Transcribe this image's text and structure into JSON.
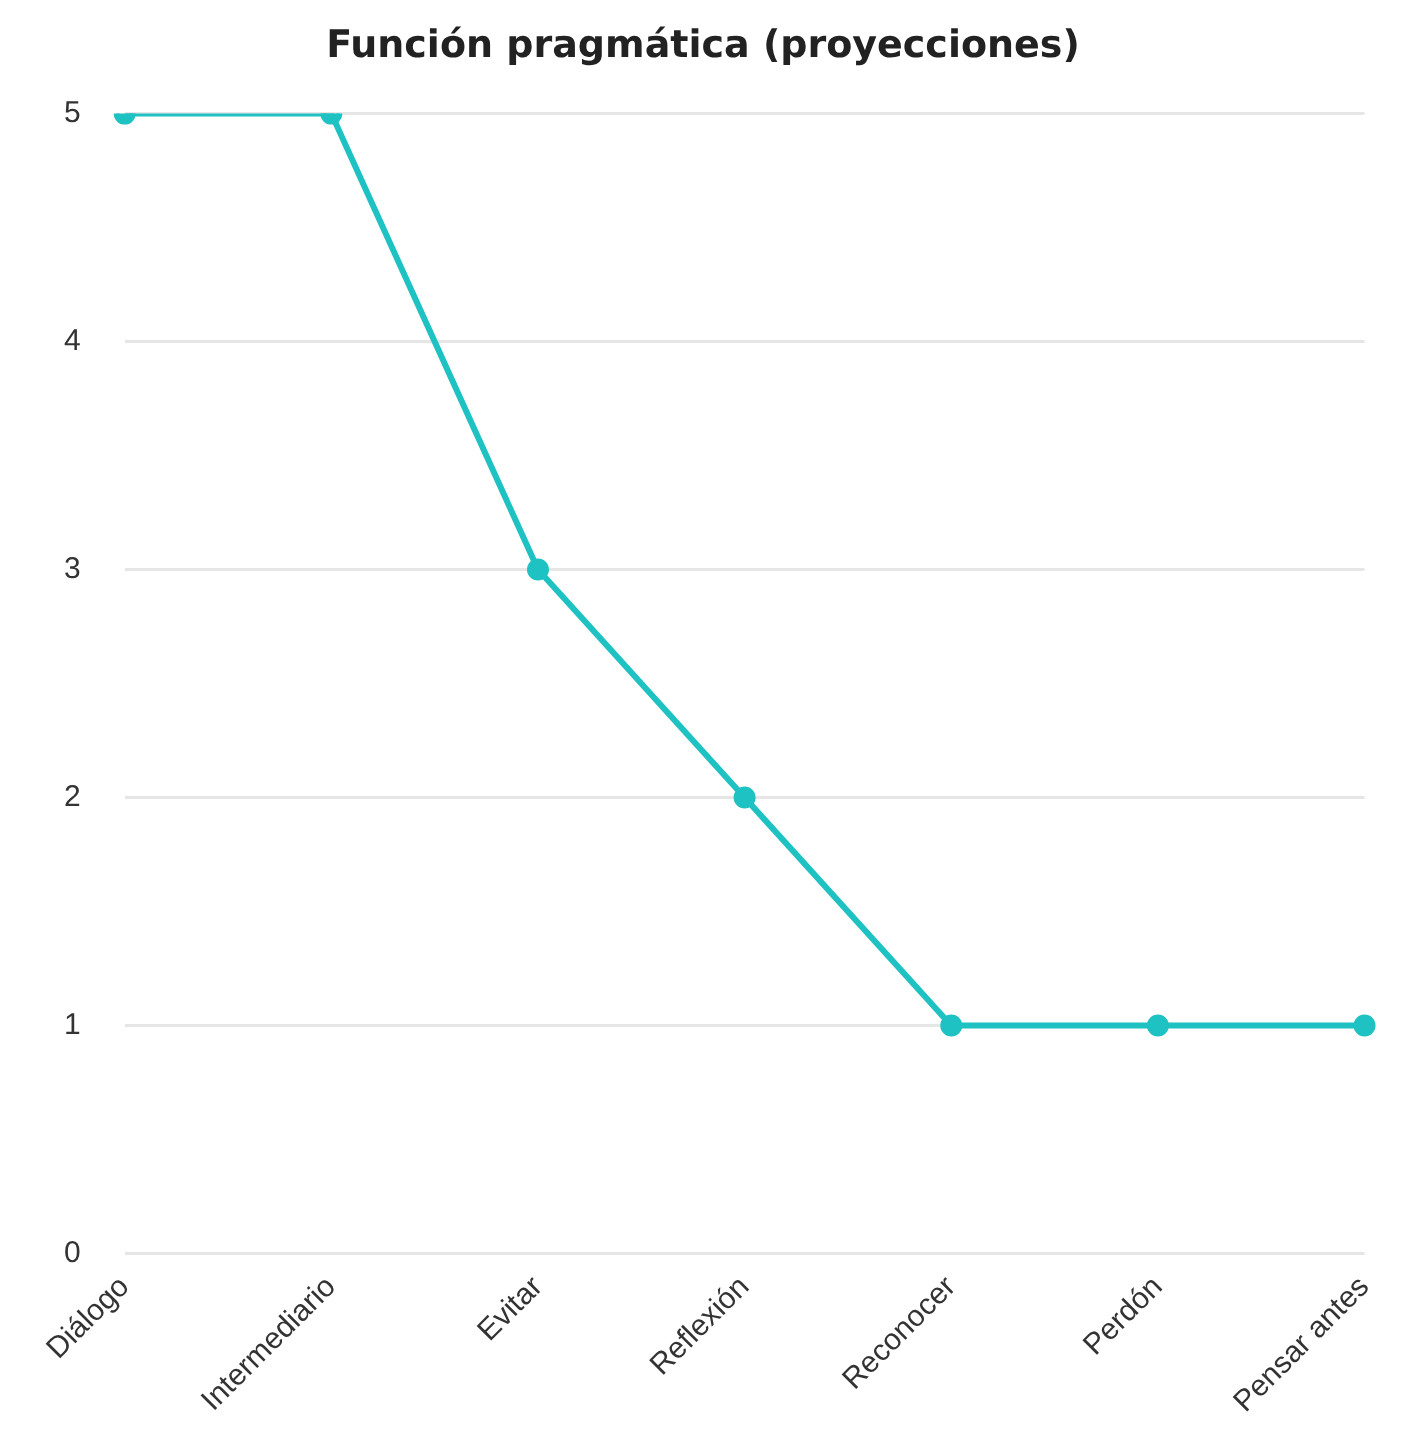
{
  "chart_data": {
    "type": "line",
    "title": "Función pragmática (proyecciones)",
    "categories": [
      "Diálogo",
      "Intermediario",
      "Evitar",
      "Reflexión",
      "Reconocer",
      "Perdón",
      "Pensar antes"
    ],
    "series": [
      {
        "color": "#1fc2c2",
        "values": [
          5,
          5,
          3,
          2,
          1,
          1,
          1
        ]
      }
    ],
    "ylim": [
      0,
      5
    ],
    "yticks": [
      0,
      1,
      2,
      3,
      4,
      5
    ],
    "grid": "y",
    "legend": false,
    "marker": "circle",
    "line_style": "solid"
  }
}
